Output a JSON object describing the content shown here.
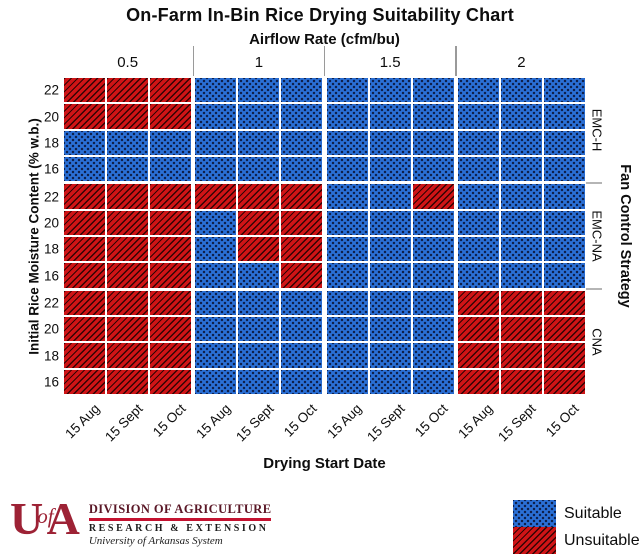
{
  "title": "On-Farm In-Bin Rice Drying Suitability Chart",
  "chart_data": {
    "type": "heatmap",
    "title": "On-Farm In-Bin Rice Drying Suitability Chart",
    "x_axis": {
      "title": "Airflow Rate (cfm/bu)",
      "groups": [
        "0.5",
        "1",
        "1.5",
        "2"
      ],
      "sub_labels": [
        "15 Aug",
        "15 Sept",
        "15 Oct"
      ],
      "bottom_title": "Drying Start Date"
    },
    "y_axis": {
      "title": "Initial Rice Moisture Content (% w.b.)",
      "right_title": "Fan Control Strategy",
      "sections": [
        "EMC-H",
        "EMC-NA",
        "CNA"
      ],
      "sub_labels": [
        "22",
        "20",
        "18",
        "16"
      ]
    },
    "legend": [
      {
        "label": "Suitable",
        "code": "S",
        "color": "#2a70d6",
        "pattern": "dots"
      },
      {
        "label": "Unsuitable",
        "code": "U",
        "color": "#cf1416",
        "pattern": "diagonal-hatch"
      }
    ],
    "matrix": [
      [
        "U",
        "U",
        "U",
        "S",
        "S",
        "S",
        "S",
        "S",
        "S",
        "S",
        "S",
        "S"
      ],
      [
        "U",
        "U",
        "U",
        "S",
        "S",
        "S",
        "S",
        "S",
        "S",
        "S",
        "S",
        "S"
      ],
      [
        "S",
        "S",
        "S",
        "S",
        "S",
        "S",
        "S",
        "S",
        "S",
        "S",
        "S",
        "S"
      ],
      [
        "S",
        "S",
        "S",
        "S",
        "S",
        "S",
        "S",
        "S",
        "S",
        "S",
        "S",
        "S"
      ],
      [
        "U",
        "U",
        "U",
        "U",
        "U",
        "U",
        "S",
        "S",
        "U",
        "S",
        "S",
        "S"
      ],
      [
        "U",
        "U",
        "U",
        "S",
        "U",
        "U",
        "S",
        "S",
        "S",
        "S",
        "S",
        "S"
      ],
      [
        "U",
        "U",
        "U",
        "S",
        "U",
        "U",
        "S",
        "S",
        "S",
        "S",
        "S",
        "S"
      ],
      [
        "U",
        "U",
        "U",
        "S",
        "S",
        "U",
        "S",
        "S",
        "S",
        "S",
        "S",
        "S"
      ],
      [
        "U",
        "U",
        "U",
        "S",
        "S",
        "S",
        "S",
        "S",
        "S",
        "U",
        "U",
        "U"
      ],
      [
        "U",
        "U",
        "U",
        "S",
        "S",
        "S",
        "S",
        "S",
        "S",
        "U",
        "U",
        "U"
      ],
      [
        "U",
        "U",
        "U",
        "S",
        "S",
        "S",
        "S",
        "S",
        "S",
        "U",
        "U",
        "U"
      ],
      [
        "U",
        "U",
        "U",
        "S",
        "S",
        "S",
        "S",
        "S",
        "S",
        "U",
        "U",
        "U"
      ]
    ]
  },
  "legend": {
    "suitable": "Suitable",
    "unsuitable": "Unsuitable"
  },
  "logo": {
    "u": "U",
    "of": "of",
    "a": "A",
    "line1": "DIVISION OF AGRICULTURE",
    "line2": "RESEARCH & EXTENSION",
    "line3": "University of Arkansas System"
  }
}
